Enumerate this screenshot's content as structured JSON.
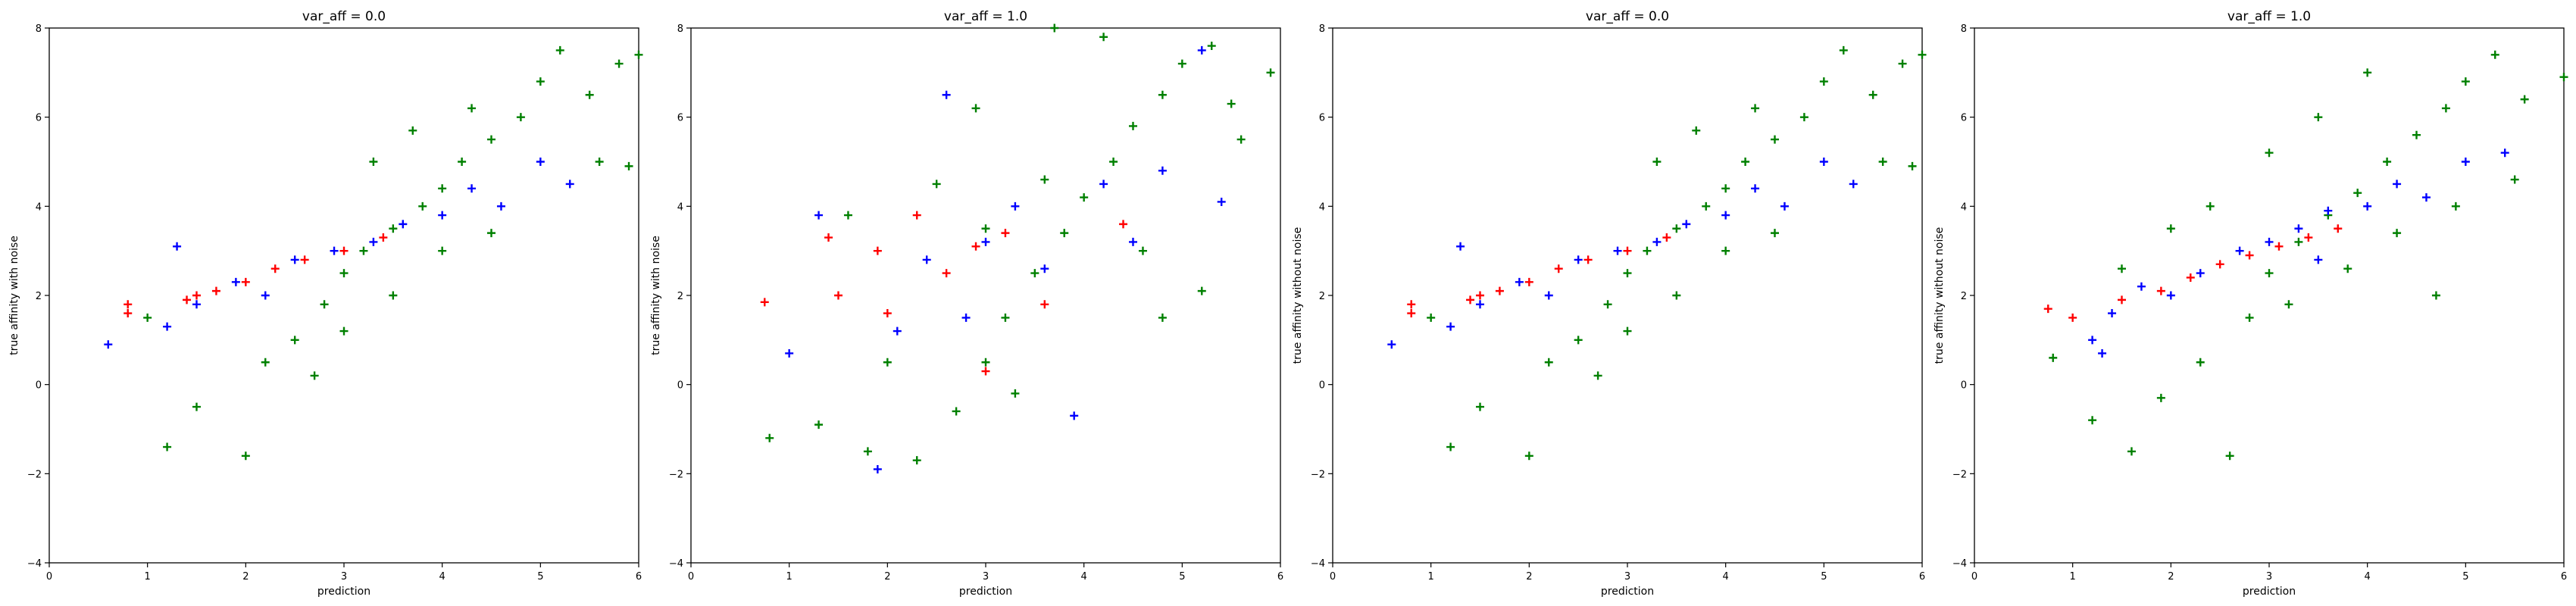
{
  "chart_data": [
    {
      "type": "scatter",
      "title": "var_aff = 0.0",
      "xlabel": "prediction",
      "ylabel": "true affinity with noise",
      "xlim": [
        0,
        6
      ],
      "ylim": [
        -4,
        8
      ],
      "xticks": [
        "0",
        "1",
        "2",
        "3",
        "4",
        "5",
        "6"
      ],
      "yticks": [
        "−4",
        "−2",
        "0",
        "2",
        "4",
        "6",
        "8"
      ],
      "marker": "+",
      "series": [
        {
          "color": "#008000",
          "points": [
            [
              1.0,
              1.5
            ],
            [
              1.2,
              -1.4
            ],
            [
              1.5,
              -0.5
            ],
            [
              2.0,
              -1.6
            ],
            [
              2.5,
              1.0
            ],
            [
              2.8,
              1.8
            ],
            [
              3.0,
              2.5
            ],
            [
              3.2,
              3.0
            ],
            [
              3.5,
              3.5
            ],
            [
              3.8,
              4.0
            ],
            [
              4.0,
              4.4
            ],
            [
              4.2,
              5.0
            ],
            [
              4.5,
              5.5
            ],
            [
              4.8,
              6.0
            ],
            [
              5.0,
              6.8
            ],
            [
              5.2,
              7.5
            ],
            [
              5.5,
              6.5
            ],
            [
              5.8,
              7.2
            ],
            [
              6.0,
              7.4
            ],
            [
              3.0,
              1.2
            ],
            [
              3.5,
              2.0
            ],
            [
              4.0,
              3.0
            ],
            [
              4.5,
              3.4
            ],
            [
              2.2,
              0.5
            ],
            [
              2.7,
              0.2
            ],
            [
              3.3,
              5.0
            ],
            [
              3.7,
              5.7
            ],
            [
              4.3,
              6.2
            ],
            [
              5.6,
              5.0
            ],
            [
              5.9,
              4.9
            ]
          ]
        },
        {
          "color": "#0000ff",
          "points": [
            [
              0.6,
              0.9
            ],
            [
              1.2,
              1.3
            ],
            [
              1.5,
              1.8
            ],
            [
              1.9,
              2.3
            ],
            [
              2.2,
              2.0
            ],
            [
              2.5,
              2.8
            ],
            [
              2.9,
              3.0
            ],
            [
              3.3,
              3.2
            ],
            [
              3.6,
              3.6
            ],
            [
              4.0,
              3.8
            ],
            [
              4.3,
              4.4
            ],
            [
              4.6,
              4.0
            ],
            [
              5.0,
              5.0
            ],
            [
              5.3,
              4.5
            ],
            [
              1.3,
              3.1
            ]
          ]
        },
        {
          "color": "#ff0000",
          "points": [
            [
              0.8,
              1.6
            ],
            [
              0.8,
              1.8
            ],
            [
              1.4,
              1.9
            ],
            [
              1.5,
              2.0
            ],
            [
              1.7,
              2.1
            ],
            [
              2.0,
              2.3
            ],
            [
              2.3,
              2.6
            ],
            [
              2.6,
              2.8
            ],
            [
              3.0,
              3.0
            ],
            [
              3.4,
              3.3
            ]
          ]
        }
      ]
    },
    {
      "type": "scatter",
      "title": "var_aff = 1.0",
      "xlabel": "prediction",
      "ylabel": "true affinity with noise",
      "xlim": [
        0,
        6
      ],
      "ylim": [
        -4,
        8
      ],
      "xticks": [
        "0",
        "1",
        "2",
        "3",
        "4",
        "5",
        "6"
      ],
      "yticks": [
        "−4",
        "−2",
        "0",
        "2",
        "4",
        "6",
        "8"
      ],
      "marker": "+",
      "series": [
        {
          "color": "#008000",
          "points": [
            [
              0.8,
              -1.2
            ],
            [
              1.3,
              -0.9
            ],
            [
              1.8,
              -1.5
            ],
            [
              2.3,
              -1.7
            ],
            [
              2.7,
              -0.6
            ],
            [
              3.0,
              0.5
            ],
            [
              3.2,
              1.5
            ],
            [
              3.5,
              2.5
            ],
            [
              3.8,
              3.4
            ],
            [
              4.0,
              4.2
            ],
            [
              4.3,
              5.0
            ],
            [
              4.5,
              5.8
            ],
            [
              4.8,
              6.5
            ],
            [
              5.0,
              7.2
            ],
            [
              5.3,
              7.6
            ],
            [
              5.5,
              6.3
            ],
            [
              5.9,
              7.0
            ],
            [
              3.7,
              8.0
            ],
            [
              4.2,
              7.8
            ],
            [
              2.5,
              4.5
            ],
            [
              2.0,
              0.5
            ],
            [
              3.0,
              3.5
            ],
            [
              3.6,
              4.6
            ],
            [
              4.6,
              3.0
            ],
            [
              5.2,
              2.1
            ],
            [
              5.6,
              5.5
            ],
            [
              1.6,
              3.8
            ],
            [
              2.9,
              6.2
            ],
            [
              4.8,
              1.5
            ],
            [
              3.3,
              -0.2
            ]
          ]
        },
        {
          "color": "#0000ff",
          "points": [
            [
              1.0,
              0.7
            ],
            [
              1.3,
              3.8
            ],
            [
              1.9,
              -1.9
            ],
            [
              2.1,
              1.2
            ],
            [
              2.4,
              2.8
            ],
            [
              2.8,
              1.5
            ],
            [
              3.0,
              3.2
            ],
            [
              3.3,
              4.0
            ],
            [
              3.6,
              2.6
            ],
            [
              3.9,
              -0.7
            ],
            [
              4.2,
              4.5
            ],
            [
              4.5,
              3.2
            ],
            [
              4.8,
              4.8
            ],
            [
              5.2,
              7.5
            ],
            [
              5.4,
              4.1
            ],
            [
              2.6,
              6.5
            ]
          ]
        },
        {
          "color": "#ff0000",
          "points": [
            [
              0.75,
              1.85
            ],
            [
              1.5,
              2.0
            ],
            [
              1.9,
              3.0
            ],
            [
              2.0,
              1.6
            ],
            [
              2.3,
              3.8
            ],
            [
              2.6,
              2.5
            ],
            [
              2.9,
              3.1
            ],
            [
              3.2,
              3.4
            ],
            [
              3.6,
              1.8
            ],
            [
              4.4,
              3.6
            ],
            [
              1.4,
              3.3
            ],
            [
              3.0,
              0.3
            ]
          ]
        }
      ]
    },
    {
      "type": "scatter",
      "title": "var_aff = 0.0",
      "xlabel": "prediction",
      "ylabel": "true affinity without noise",
      "xlim": [
        0,
        6
      ],
      "ylim": [
        -4,
        8
      ],
      "xticks": [
        "0",
        "1",
        "2",
        "3",
        "4",
        "5",
        "6"
      ],
      "yticks": [
        "−4",
        "−2",
        "0",
        "2",
        "4",
        "6",
        "8"
      ],
      "marker": "+",
      "series": [
        {
          "color": "#008000",
          "points": [
            [
              1.0,
              1.5
            ],
            [
              1.2,
              -1.4
            ],
            [
              1.5,
              -0.5
            ],
            [
              2.0,
              -1.6
            ],
            [
              2.5,
              1.0
            ],
            [
              2.8,
              1.8
            ],
            [
              3.0,
              2.5
            ],
            [
              3.2,
              3.0
            ],
            [
              3.5,
              3.5
            ],
            [
              3.8,
              4.0
            ],
            [
              4.0,
              4.4
            ],
            [
              4.2,
              5.0
            ],
            [
              4.5,
              5.5
            ],
            [
              4.8,
              6.0
            ],
            [
              5.0,
              6.8
            ],
            [
              5.2,
              7.5
            ],
            [
              5.5,
              6.5
            ],
            [
              5.8,
              7.2
            ],
            [
              6.0,
              7.4
            ],
            [
              3.0,
              1.2
            ],
            [
              3.5,
              2.0
            ],
            [
              4.0,
              3.0
            ],
            [
              4.5,
              3.4
            ],
            [
              2.2,
              0.5
            ],
            [
              2.7,
              0.2
            ],
            [
              3.3,
              5.0
            ],
            [
              3.7,
              5.7
            ],
            [
              4.3,
              6.2
            ],
            [
              5.6,
              5.0
            ],
            [
              5.9,
              4.9
            ]
          ]
        },
        {
          "color": "#0000ff",
          "points": [
            [
              0.6,
              0.9
            ],
            [
              1.2,
              1.3
            ],
            [
              1.5,
              1.8
            ],
            [
              1.9,
              2.3
            ],
            [
              2.2,
              2.0
            ],
            [
              2.5,
              2.8
            ],
            [
              2.9,
              3.0
            ],
            [
              3.3,
              3.2
            ],
            [
              3.6,
              3.6
            ],
            [
              4.0,
              3.8
            ],
            [
              4.3,
              4.4
            ],
            [
              4.6,
              4.0
            ],
            [
              5.0,
              5.0
            ],
            [
              5.3,
              4.5
            ],
            [
              1.3,
              3.1
            ]
          ]
        },
        {
          "color": "#ff0000",
          "points": [
            [
              0.8,
              1.6
            ],
            [
              0.8,
              1.8
            ],
            [
              1.4,
              1.9
            ],
            [
              1.5,
              2.0
            ],
            [
              1.7,
              2.1
            ],
            [
              2.0,
              2.3
            ],
            [
              2.3,
              2.6
            ],
            [
              2.6,
              2.8
            ],
            [
              3.0,
              3.0
            ],
            [
              3.4,
              3.3
            ]
          ]
        }
      ]
    },
    {
      "type": "scatter",
      "title": "var_aff = 1.0",
      "xlabel": "prediction",
      "ylabel": "true affinity without noise",
      "xlim": [
        0,
        6
      ],
      "ylim": [
        -4,
        8
      ],
      "xticks": [
        "0",
        "1",
        "2",
        "3",
        "4",
        "5",
        "6"
      ],
      "yticks": [
        "−4",
        "−2",
        "0",
        "2",
        "4",
        "6",
        "8"
      ],
      "marker": "+",
      "series": [
        {
          "color": "#008000",
          "points": [
            [
              0.8,
              0.6
            ],
            [
              1.2,
              -0.8
            ],
            [
              1.6,
              -1.5
            ],
            [
              1.9,
              -0.3
            ],
            [
              2.3,
              0.5
            ],
            [
              2.6,
              -1.6
            ],
            [
              2.8,
              1.5
            ],
            [
              3.0,
              2.5
            ],
            [
              3.3,
              3.2
            ],
            [
              3.6,
              3.8
            ],
            [
              3.9,
              4.3
            ],
            [
              4.2,
              5.0
            ],
            [
              4.5,
              5.6
            ],
            [
              4.8,
              6.2
            ],
            [
              5.0,
              6.8
            ],
            [
              5.3,
              7.4
            ],
            [
              5.6,
              6.4
            ],
            [
              6.0,
              6.9
            ],
            [
              3.2,
              1.8
            ],
            [
              3.8,
              2.6
            ],
            [
              4.3,
              3.4
            ],
            [
              4.7,
              2.0
            ],
            [
              2.4,
              4.0
            ],
            [
              3.0,
              5.2
            ],
            [
              3.5,
              6.0
            ],
            [
              4.0,
              7.0
            ],
            [
              5.5,
              4.6
            ],
            [
              1.5,
              2.6
            ],
            [
              2.0,
              3.5
            ],
            [
              4.9,
              4.0
            ]
          ]
        },
        {
          "color": "#0000ff",
          "points": [
            [
              1.2,
              1.0
            ],
            [
              1.4,
              1.6
            ],
            [
              1.7,
              2.2
            ],
            [
              2.0,
              2.0
            ],
            [
              2.3,
              2.5
            ],
            [
              2.7,
              3.0
            ],
            [
              3.0,
              3.2
            ],
            [
              3.3,
              3.5
            ],
            [
              3.6,
              3.9
            ],
            [
              4.0,
              4.0
            ],
            [
              4.3,
              4.5
            ],
            [
              4.6,
              4.2
            ],
            [
              5.0,
              5.0
            ],
            [
              5.4,
              5.2
            ],
            [
              1.3,
              0.7
            ],
            [
              3.5,
              2.8
            ]
          ]
        },
        {
          "color": "#ff0000",
          "points": [
            [
              0.75,
              1.7
            ],
            [
              1.0,
              1.5
            ],
            [
              1.5,
              1.9
            ],
            [
              1.9,
              2.1
            ],
            [
              2.2,
              2.4
            ],
            [
              2.5,
              2.7
            ],
            [
              2.8,
              2.9
            ],
            [
              3.1,
              3.1
            ],
            [
              3.4,
              3.3
            ],
            [
              3.7,
              3.5
            ]
          ]
        }
      ]
    }
  ]
}
